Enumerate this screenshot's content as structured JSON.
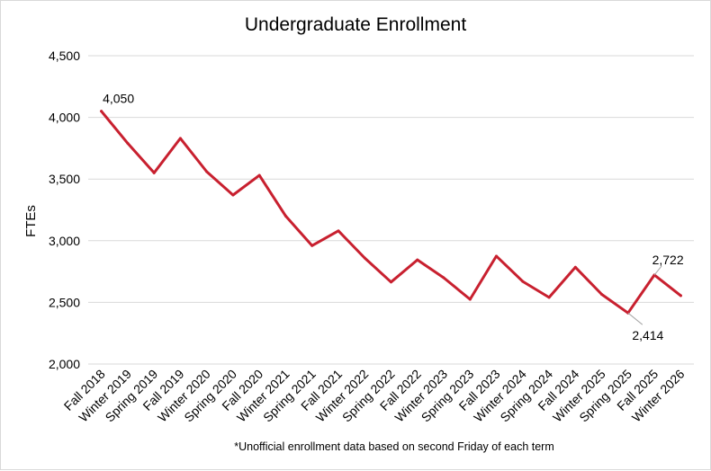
{
  "chart_data": {
    "type": "line",
    "title": "Undergraduate Enrollment",
    "xlabel": "",
    "ylabel": "FTEs",
    "ylim": [
      2000,
      4500
    ],
    "yticks": [
      2000,
      2500,
      3000,
      3500,
      4000,
      4500
    ],
    "ytick_labels": [
      "2,000",
      "2,500",
      "3,000",
      "3,500",
      "4,000",
      "4,500"
    ],
    "grid": true,
    "legend": "none",
    "categories": [
      "Fall 2018",
      "Winter 2019",
      "Spring 2019",
      "Fall 2019",
      "Winter 2020",
      "Spring 2020",
      "Fall 2020",
      "Winter 2021",
      "Spring 2021",
      "Fall 2021",
      "Winter 2022",
      "Spring 2022",
      "Fall 2022",
      "Winter 2023",
      "Spring 2023",
      "Fall 2023",
      "Winter 2024",
      "Spring 2024",
      "Fall 2024",
      "Winter 2025",
      "Spring 2025",
      "Fall 2025",
      "Winter 2026"
    ],
    "series": [
      {
        "values": [
          4050,
          3790,
          3550,
          3830,
          3560,
          3370,
          3530,
          3200,
          2960,
          3080,
          2860,
          2665,
          2845,
          2700,
          2525,
          2875,
          2670,
          2540,
          2785,
          2565,
          2414,
          2722,
          2555
        ],
        "color": "#c8202f"
      }
    ],
    "data_labels": [
      {
        "index": 0,
        "text": "4,050"
      },
      {
        "index": 21,
        "text": "2,722"
      },
      {
        "index": 20,
        "text": "2,414"
      }
    ],
    "note": "*Unofficial enrollment data based on second Friday of each term"
  }
}
